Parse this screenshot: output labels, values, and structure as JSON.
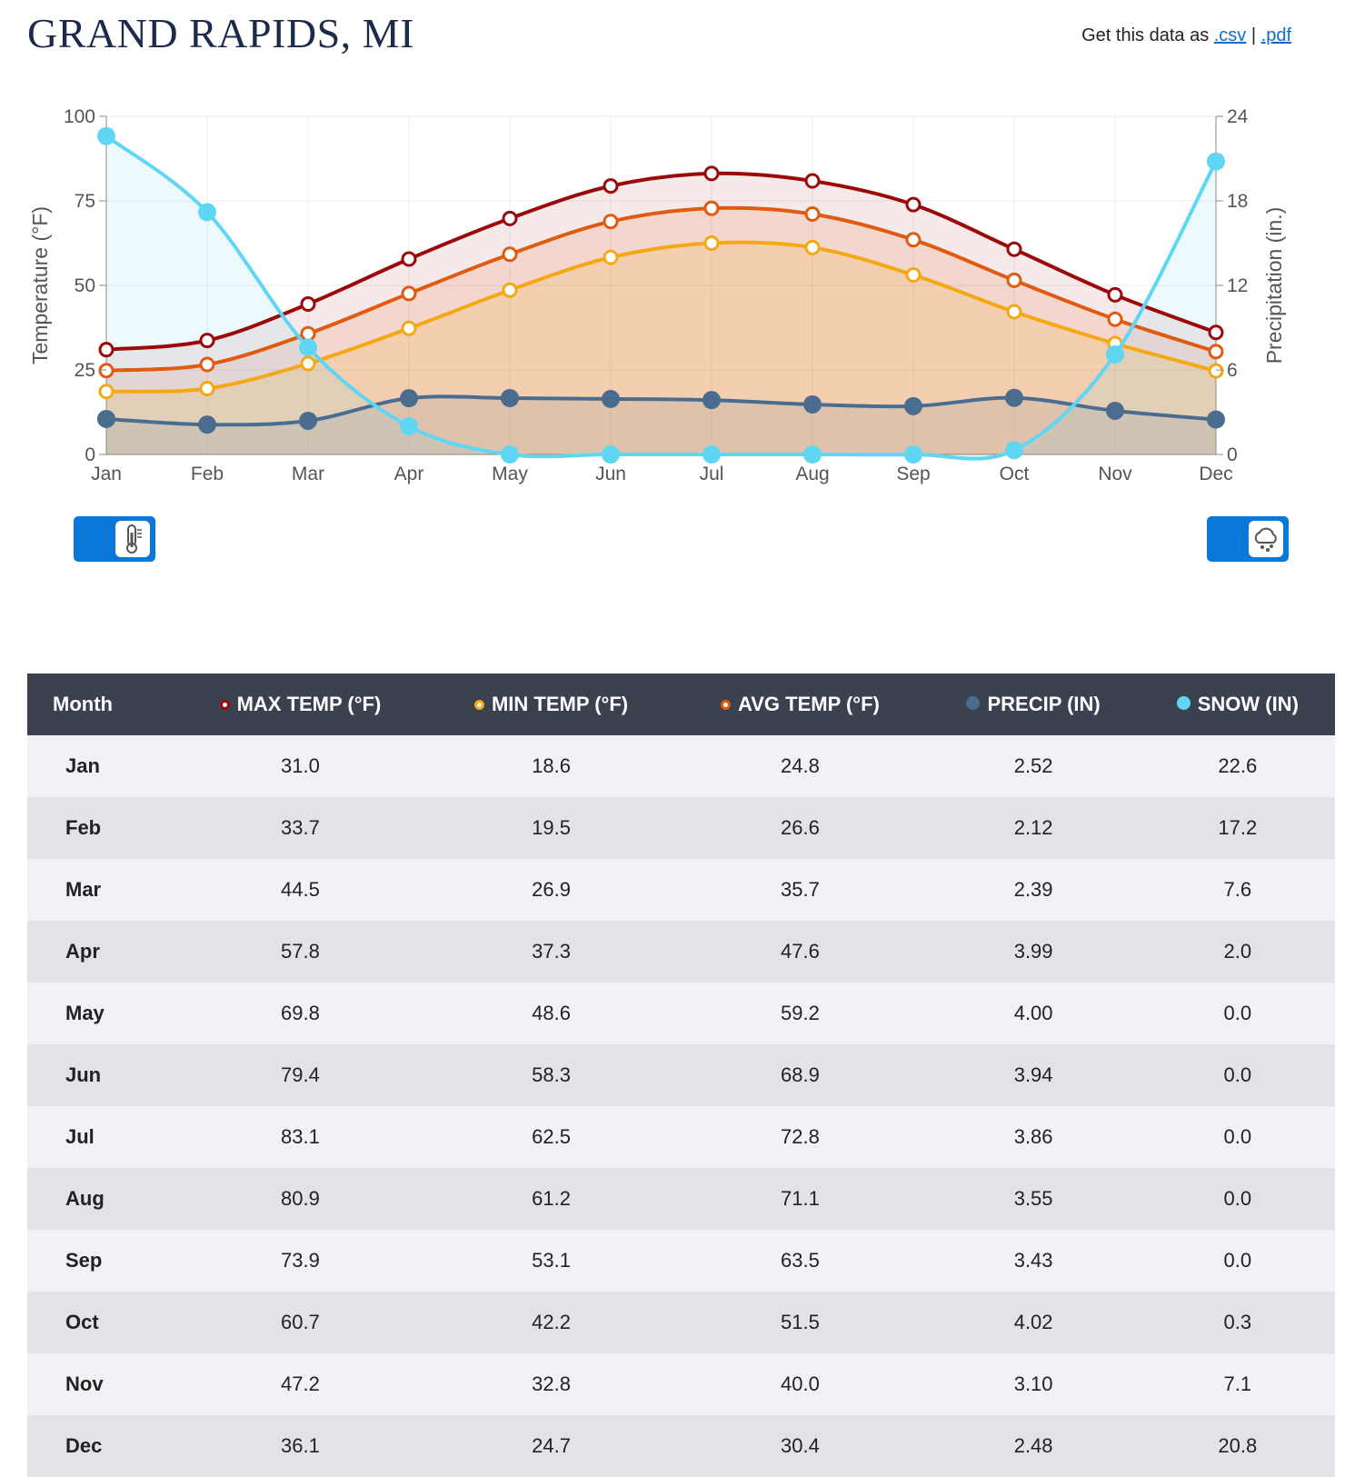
{
  "page": {
    "title": "GRAND RAPIDS, MI",
    "get_data_label": "Get this data as",
    "csv_link": ".csv",
    "separator": "|",
    "pdf_link": ".pdf"
  },
  "chart_data": {
    "type": "line",
    "categories": [
      "Jan",
      "Feb",
      "Mar",
      "Apr",
      "May",
      "Jun",
      "Jul",
      "Aug",
      "Sep",
      "Oct",
      "Nov",
      "Dec"
    ],
    "ylabel": "Temperature (°F)",
    "y2label": "Precipitation (in.)",
    "ylim": [
      0,
      100
    ],
    "y2lim": [
      0,
      24
    ],
    "yticks": [
      0,
      25,
      50,
      75,
      100
    ],
    "y2ticks": [
      0,
      6,
      12,
      18,
      24
    ],
    "grid": true,
    "series": [
      {
        "name": "MAX TEMP (°F)",
        "axis": "temp",
        "color": "#9b0a0a",
        "values": [
          31.0,
          33.7,
          44.5,
          57.8,
          69.8,
          79.4,
          83.1,
          80.9,
          73.9,
          60.7,
          47.2,
          36.1
        ]
      },
      {
        "name": "AVG TEMP (°F)",
        "axis": "temp",
        "color": "#e05a10",
        "values": [
          24.8,
          26.6,
          35.7,
          47.6,
          59.2,
          68.9,
          72.8,
          71.1,
          63.5,
          51.5,
          40.0,
          30.4
        ]
      },
      {
        "name": "MIN TEMP (°F)",
        "axis": "temp",
        "color": "#f5a714",
        "values": [
          18.6,
          19.5,
          26.9,
          37.3,
          48.6,
          58.3,
          62.5,
          61.2,
          53.1,
          42.2,
          32.8,
          24.7
        ]
      },
      {
        "name": "PRECIP (IN)",
        "axis": "precip",
        "color": "#4a6d8f",
        "values": [
          2.52,
          2.12,
          2.39,
          3.99,
          4.0,
          3.94,
          3.86,
          3.55,
          3.43,
          4.02,
          3.1,
          2.48
        ]
      },
      {
        "name": "SNOW (IN)",
        "axis": "precip",
        "color": "#5fd7f4",
        "values": [
          22.6,
          17.2,
          7.6,
          2.0,
          0.0,
          0.0,
          0.0,
          0.0,
          0.0,
          0.3,
          7.1,
          20.8
        ]
      }
    ]
  },
  "toggles": {
    "temperature_icon": "thermometer-icon",
    "precipitation_icon": "rain-cloud-icon",
    "color": "#0a78d8"
  },
  "table": {
    "headers": [
      "Month",
      "MAX TEMP (°F)",
      "MIN TEMP (°F)",
      "AVG TEMP (°F)",
      "PRECIP (IN)",
      "SNOW (IN)"
    ],
    "header_colors": [
      "",
      "#9b0a0a",
      "#f5a714",
      "#e05a10",
      "#4a6d8f",
      "#5fd7f4"
    ],
    "rows": [
      [
        "Jan",
        "31.0",
        "18.6",
        "24.8",
        "2.52",
        "22.6"
      ],
      [
        "Feb",
        "33.7",
        "19.5",
        "26.6",
        "2.12",
        "17.2"
      ],
      [
        "Mar",
        "44.5",
        "26.9",
        "35.7",
        "2.39",
        "7.6"
      ],
      [
        "Apr",
        "57.8",
        "37.3",
        "47.6",
        "3.99",
        "2.0"
      ],
      [
        "May",
        "69.8",
        "48.6",
        "59.2",
        "4.00",
        "0.0"
      ],
      [
        "Jun",
        "79.4",
        "58.3",
        "68.9",
        "3.94",
        "0.0"
      ],
      [
        "Jul",
        "83.1",
        "62.5",
        "72.8",
        "3.86",
        "0.0"
      ],
      [
        "Aug",
        "80.9",
        "61.2",
        "71.1",
        "3.55",
        "0.0"
      ],
      [
        "Sep",
        "73.9",
        "53.1",
        "63.5",
        "3.43",
        "0.0"
      ],
      [
        "Oct",
        "60.7",
        "42.2",
        "51.5",
        "4.02",
        "0.3"
      ],
      [
        "Nov",
        "47.2",
        "32.8",
        "40.0",
        "3.10",
        "7.1"
      ],
      [
        "Dec",
        "36.1",
        "24.7",
        "30.4",
        "2.48",
        "20.8"
      ]
    ]
  }
}
